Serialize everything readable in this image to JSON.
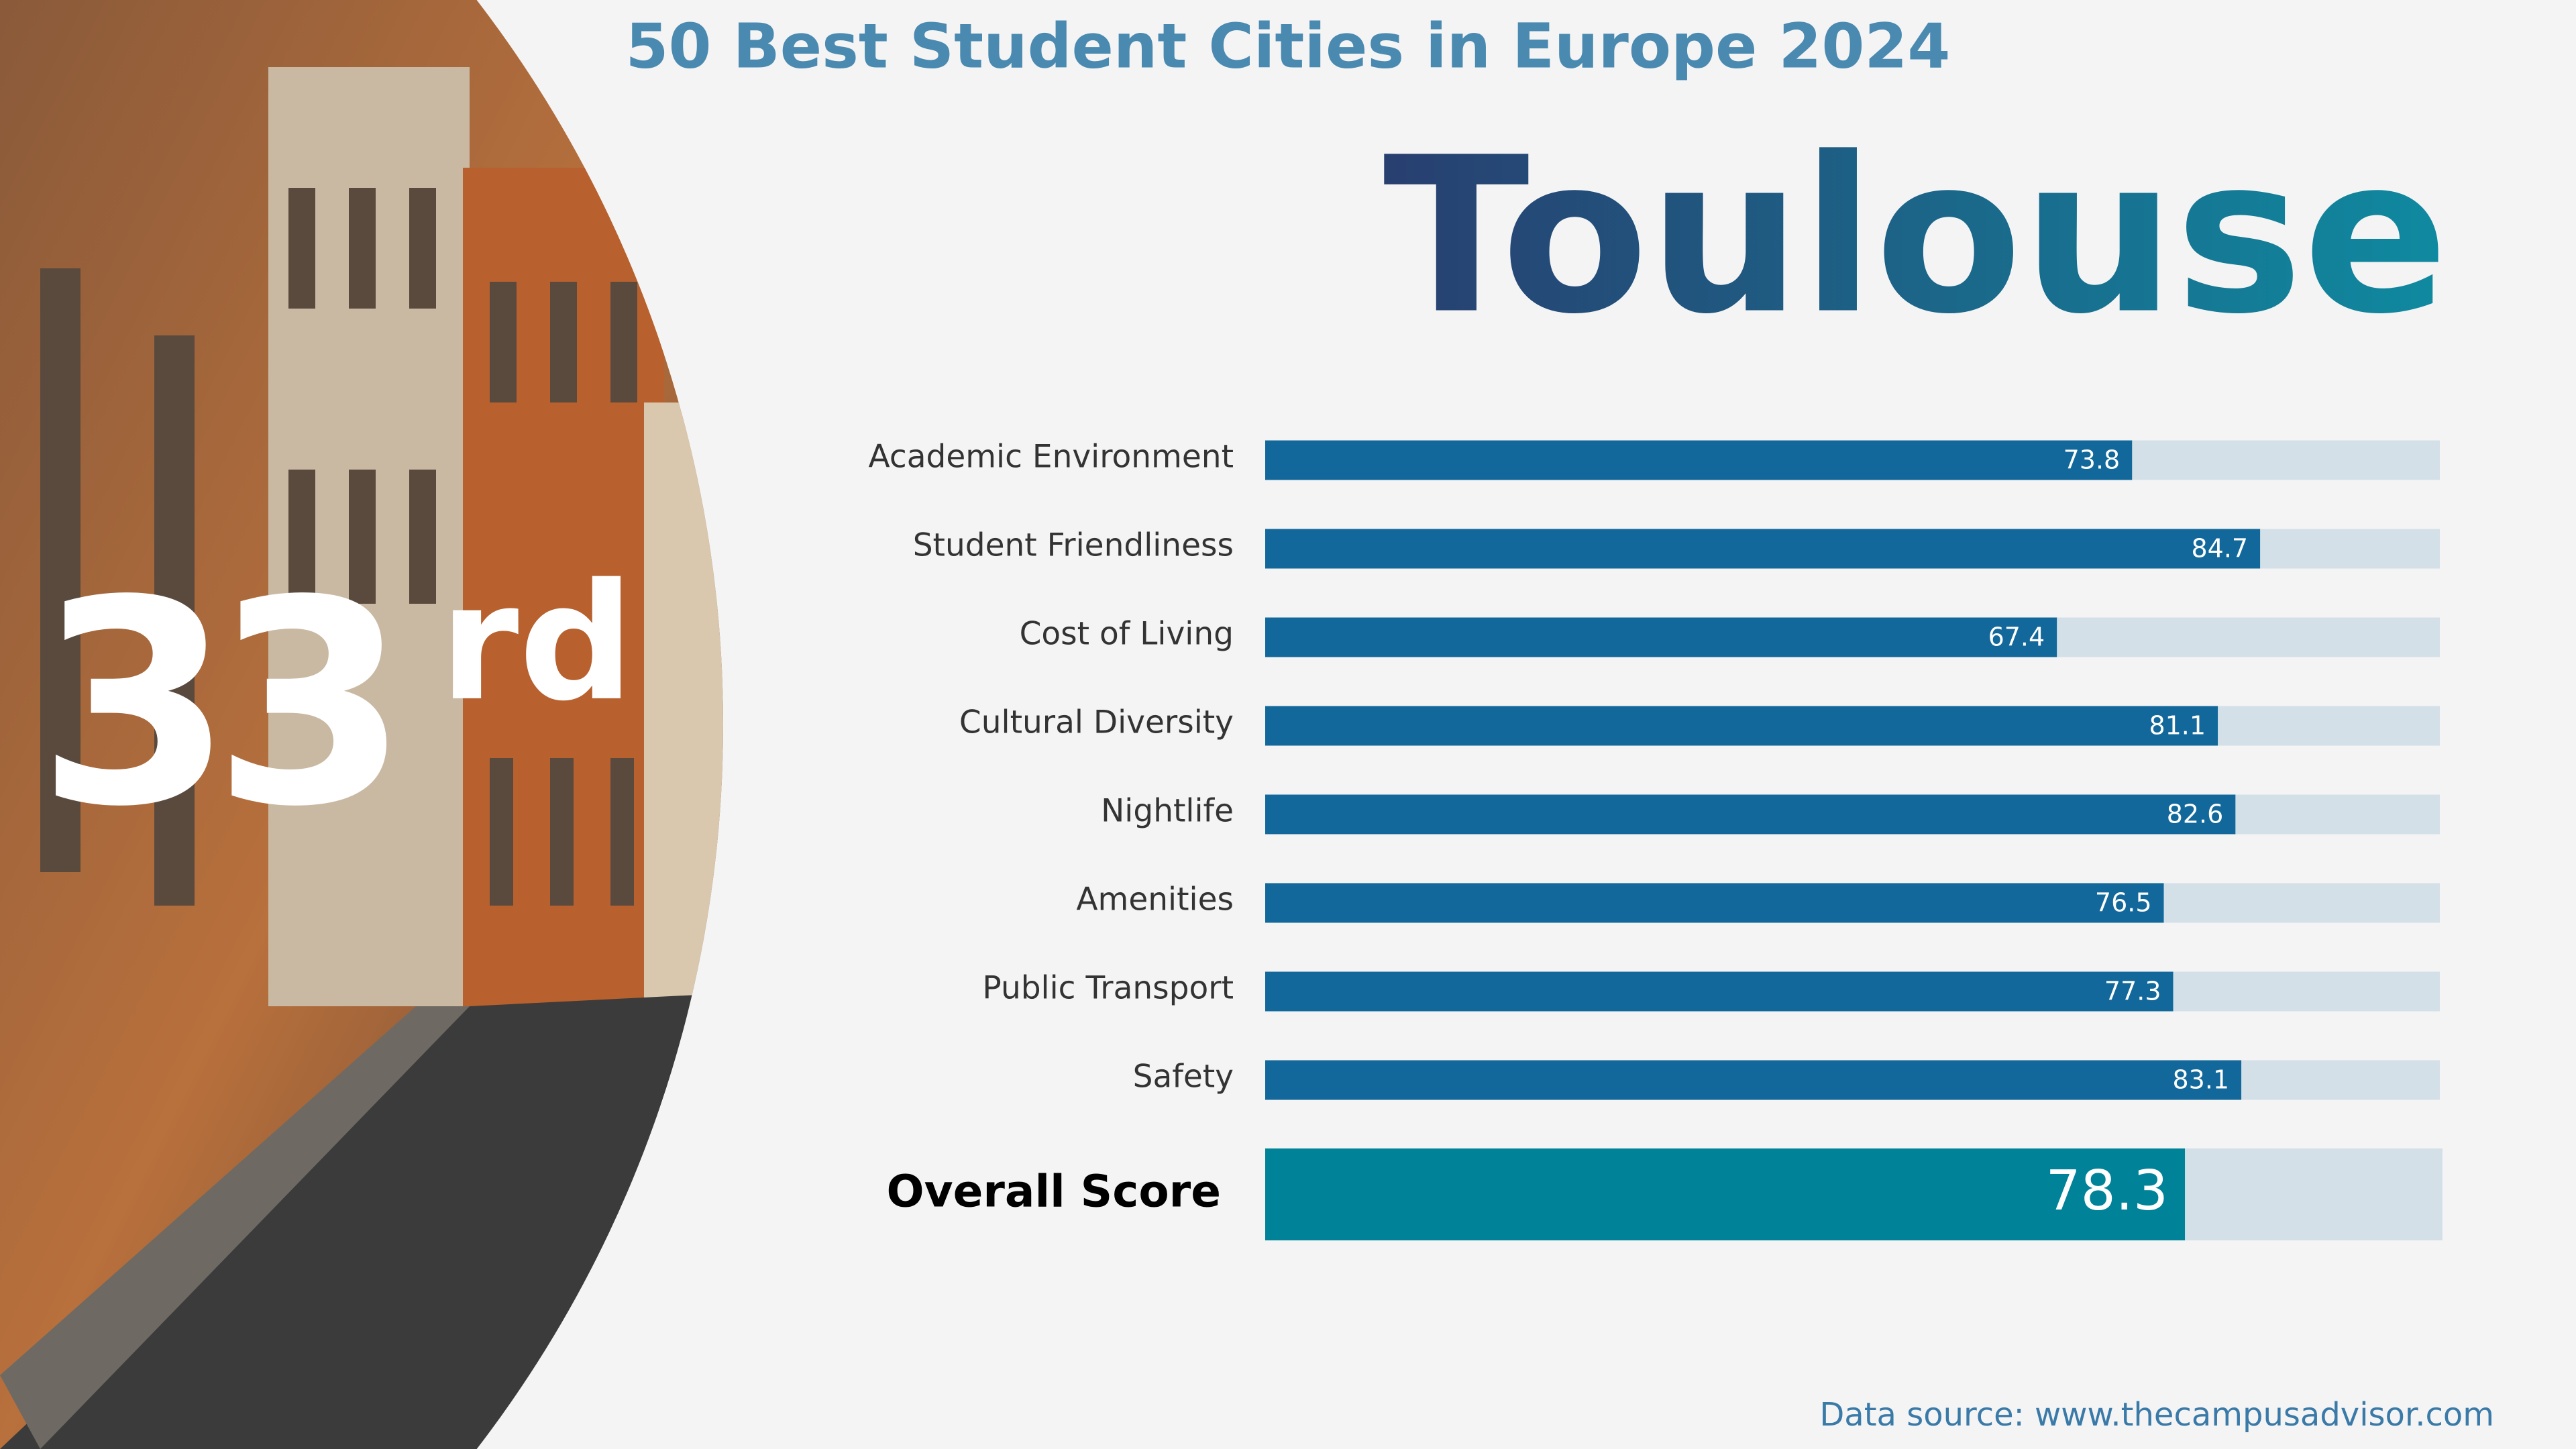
{
  "chart_data": {
    "type": "bar",
    "title": "50 Best Student Cities in Europe 2024",
    "city": "Toulouse",
    "rank": "33",
    "rank_suffix": "rd",
    "categories": [
      "Academic Environment",
      "Student Friendliness",
      "Cost of Living",
      "Cultural Diversity",
      "Nightlife",
      "Amenities",
      "Public Transport",
      "Safety"
    ],
    "values": [
      73.8,
      84.7,
      67.4,
      81.1,
      82.6,
      76.5,
      77.3,
      83.1
    ],
    "color": "#12689a",
    "xlim": [
      0,
      100
    ],
    "overall": {
      "label": "Overall Score",
      "value": 78.3,
      "color": "#008299"
    },
    "source": "Data source: www.thecampusadvisor.com"
  }
}
